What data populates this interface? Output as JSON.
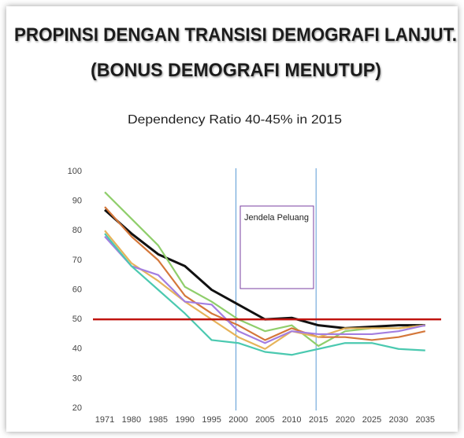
{
  "chart_data": {
    "type": "line",
    "title": [
      "PROPINSI DENGAN TRANSISI DEMOGRAFI LANJUT.",
      "(BONUS DEMOGRAFI MENUTUP)"
    ],
    "subtitle": "Dependency Ratio 40-45% in 2015",
    "categories": [
      "1971",
      "1980",
      "1985",
      "1990",
      "1995",
      "2000",
      "2005",
      "2010",
      "2015",
      "2020",
      "2025",
      "2030",
      "2035"
    ],
    "series": [
      {
        "color": "#111111",
        "values": [
          87,
          79,
          72,
          68,
          60,
          55,
          50,
          50.5,
          48,
          47,
          47.5,
          48,
          48
        ]
      },
      {
        "color": "#8fce6b",
        "values": [
          93,
          84,
          75,
          61,
          56,
          50,
          46,
          48,
          41,
          46,
          47,
          47,
          48
        ]
      },
      {
        "color": "#d4773a",
        "values": [
          88,
          78,
          70,
          58,
          52,
          48,
          43,
          47,
          44,
          44,
          43,
          44,
          46
        ]
      },
      {
        "color": "#e6b35a",
        "values": [
          80,
          69,
          63,
          56,
          50,
          44,
          40,
          46,
          44,
          47,
          47,
          47,
          48
        ]
      },
      {
        "color": "#a37ee0",
        "values": [
          78,
          68,
          65,
          56,
          55,
          46,
          42,
          46,
          45,
          45,
          45,
          46,
          48
        ]
      },
      {
        "color": "#4bc9b0",
        "values": [
          79,
          68,
          60,
          52,
          43,
          42,
          39,
          38,
          40,
          42,
          42,
          40,
          39.5
        ]
      }
    ],
    "reference_line": {
      "value": 50,
      "color": "#c0140f"
    },
    "vlines": [
      "2000",
      "2015"
    ],
    "vline_color": "#5b9bd5",
    "annotation": "Jendela Peluang",
    "ylim": [
      20,
      100
    ],
    "yticks": [
      20,
      30,
      40,
      50,
      60,
      70,
      80,
      90,
      100
    ]
  }
}
